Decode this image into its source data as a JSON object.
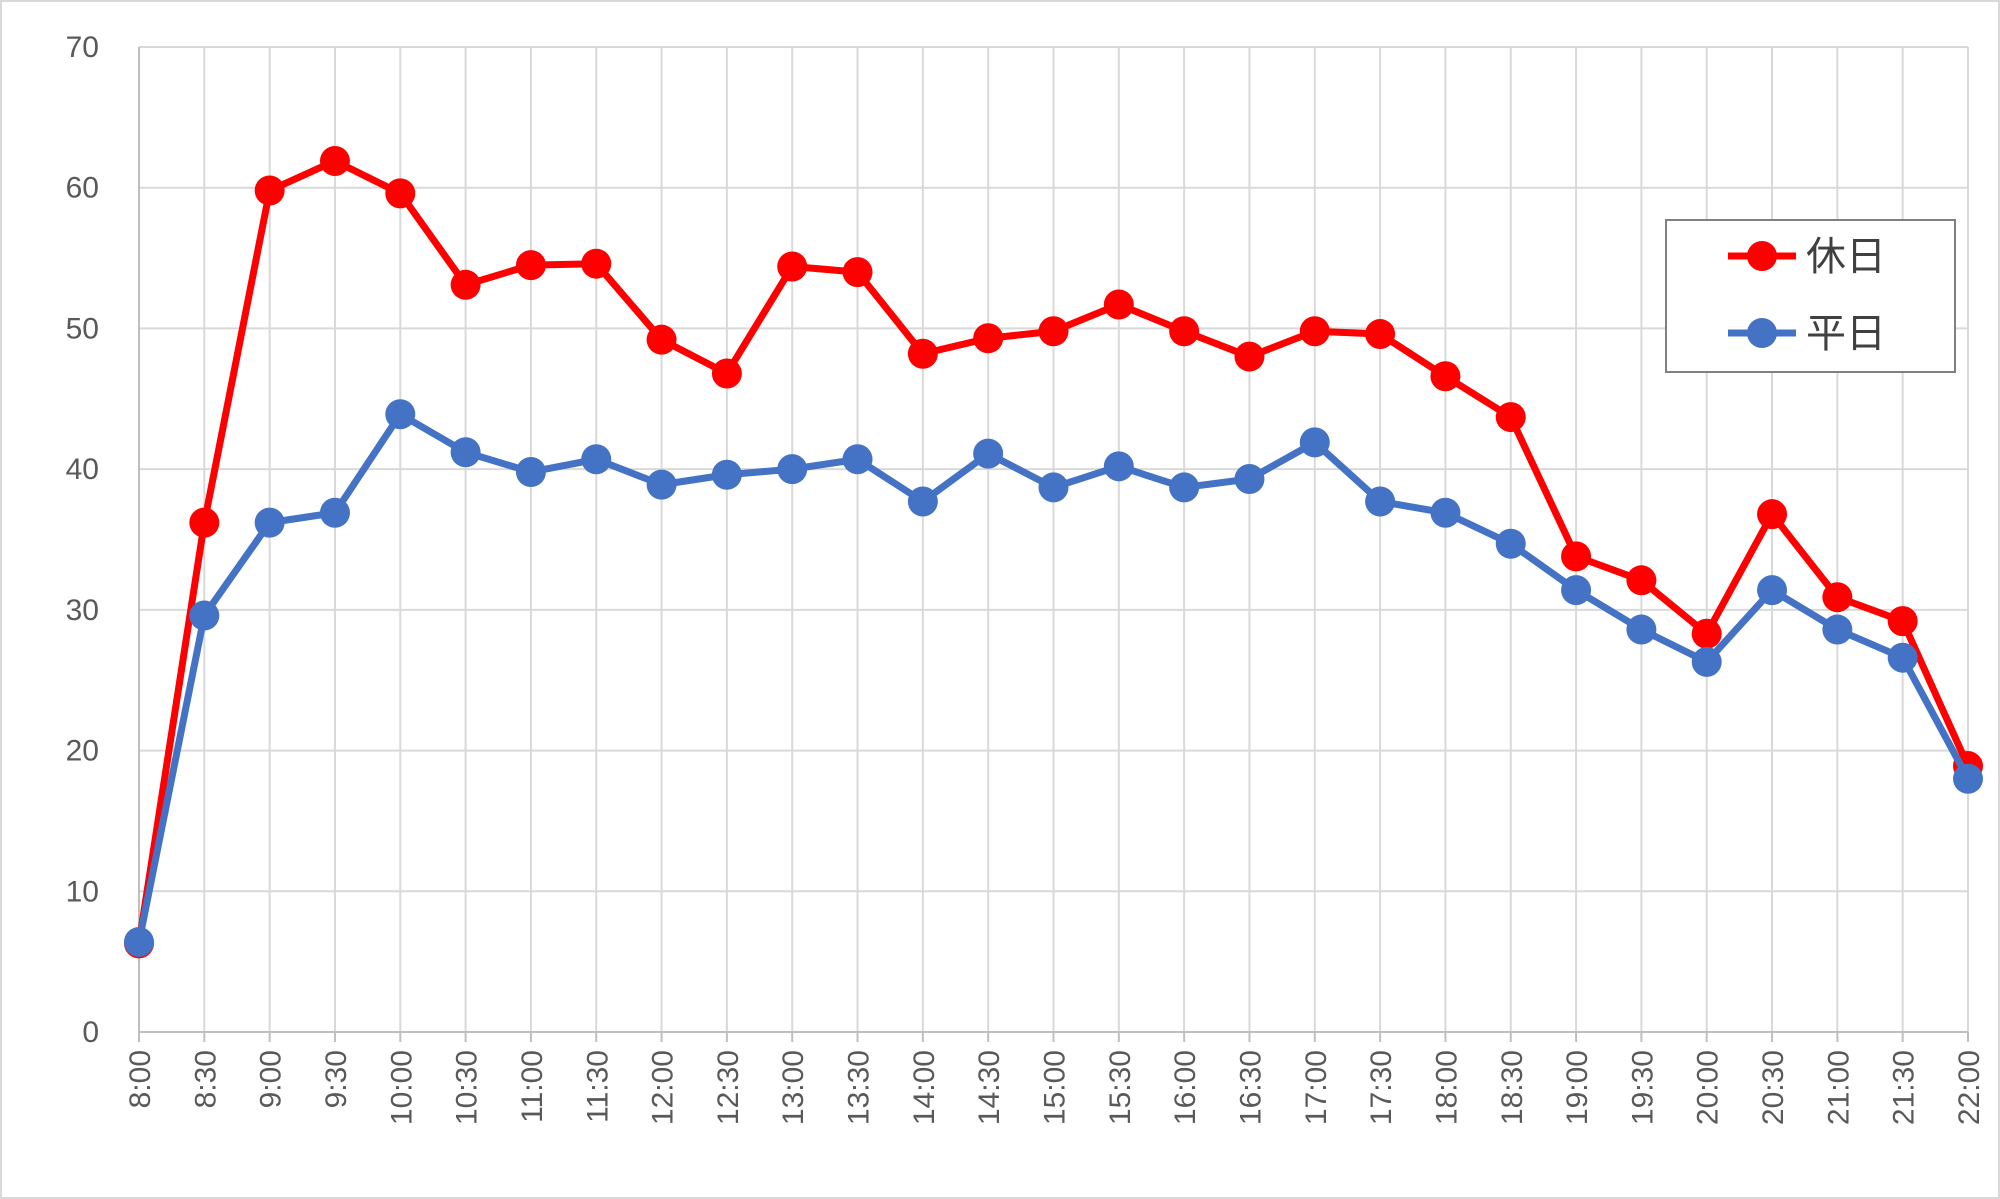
{
  "chart_data": {
    "type": "line",
    "title": "",
    "xlabel": "",
    "ylabel": "",
    "ylim": [
      0,
      70
    ],
    "yticks": [
      0,
      10,
      20,
      30,
      40,
      50,
      60,
      70
    ],
    "categories": [
      "8:00",
      "8:30",
      "9:00",
      "9:30",
      "10:00",
      "10:30",
      "11:00",
      "11:30",
      "12:00",
      "12:30",
      "13:00",
      "13:30",
      "14:00",
      "14:30",
      "15:00",
      "15:30",
      "16:00",
      "16:30",
      "17:00",
      "17:30",
      "18:00",
      "18:30",
      "19:00",
      "19:30",
      "20:00",
      "20:30",
      "21:00",
      "21:30",
      "22:00"
    ],
    "grid": true,
    "legend_position": "top-right",
    "series": [
      {
        "name": "休日",
        "color": "#ff0000",
        "values": [
          6.3,
          36.2,
          59.8,
          61.9,
          59.6,
          53.1,
          54.5,
          54.6,
          49.2,
          46.8,
          54.4,
          54.0,
          48.2,
          49.3,
          49.8,
          51.7,
          49.8,
          48.0,
          49.8,
          49.6,
          46.6,
          43.7,
          33.8,
          32.1,
          28.3,
          36.8,
          30.9,
          29.2,
          18.9
        ]
      },
      {
        "name": "平日",
        "color": "#4472c4",
        "values": [
          6.4,
          29.6,
          36.2,
          36.9,
          43.9,
          41.2,
          39.8,
          40.7,
          38.9,
          39.6,
          40.0,
          40.7,
          37.7,
          41.1,
          38.7,
          40.2,
          38.7,
          39.3,
          41.9,
          37.7,
          36.9,
          34.7,
          31.4,
          28.6,
          26.3,
          31.4,
          28.6,
          26.6,
          18.0
        ]
      }
    ]
  }
}
